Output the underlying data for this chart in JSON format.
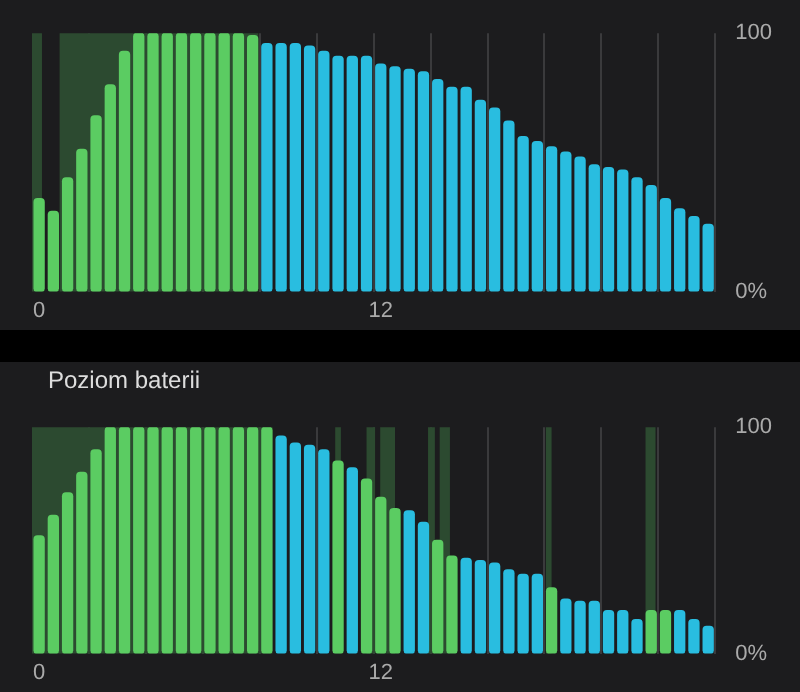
{
  "chart_data": [
    {
      "type": "bar",
      "x": [
        0,
        0.5,
        1,
        1.5,
        2,
        2.5,
        3,
        3.5,
        4,
        4.5,
        5,
        5.5,
        6,
        6.5,
        7,
        7.5,
        8,
        8.5,
        9,
        9.5,
        10,
        10.5,
        11,
        11.5,
        12,
        12.5,
        13,
        13.5,
        14,
        14.5,
        15,
        15.5,
        16,
        16.5,
        17,
        17.5,
        18,
        18.5,
        19,
        19.5,
        20,
        20.5,
        21,
        21.5,
        22,
        22.5,
        23,
        23.5
      ],
      "values": [
        36,
        31,
        44,
        55,
        68,
        80,
        93,
        100,
        100,
        100,
        100,
        100,
        100,
        100,
        100,
        99,
        96,
        96,
        96,
        95,
        93,
        91,
        91,
        91,
        88,
        87,
        86,
        85,
        82,
        79,
        79,
        74,
        71,
        66,
        60,
        58,
        56,
        54,
        52,
        49,
        48,
        47,
        44,
        41,
        36,
        32,
        29,
        26
      ],
      "colors": [
        "#5bcc62",
        "#5bcc62",
        "#5bcc62",
        "#5bcc62",
        "#5bcc62",
        "#5bcc62",
        "#5bcc62",
        "#5bcc62",
        "#5bcc62",
        "#5bcc62",
        "#5bcc62",
        "#5bcc62",
        "#5bcc62",
        "#5bcc62",
        "#5bcc62",
        "#5bcc62",
        "#29bde0",
        "#29bde0",
        "#29bde0",
        "#29bde0",
        "#29bde0",
        "#29bde0",
        "#29bde0",
        "#29bde0",
        "#29bde0",
        "#29bde0",
        "#29bde0",
        "#29bde0",
        "#29bde0",
        "#29bde0",
        "#29bde0",
        "#29bde0",
        "#29bde0",
        "#29bde0",
        "#29bde0",
        "#29bde0",
        "#29bde0",
        "#29bde0",
        "#29bde0",
        "#29bde0",
        "#29bde0",
        "#29bde0",
        "#29bde0",
        "#29bde0",
        "#29bde0",
        "#29bde0",
        "#29bde0",
        "#29bde0"
      ],
      "xlim": [
        -0.25,
        23.75
      ],
      "xticks": [
        {
          "value": 0,
          "label": "0"
        },
        {
          "value": 1.75,
          "label": null
        },
        {
          "value": 3.75,
          "label": null
        },
        {
          "value": 5.75,
          "label": null
        },
        {
          "value": 7.75,
          "label": null
        },
        {
          "value": 9.75,
          "label": null
        },
        {
          "value": 11.75,
          "label": null
        },
        {
          "value": 12,
          "label": "12"
        },
        {
          "value": 13.75,
          "label": null
        },
        {
          "value": 15.75,
          "label": null
        },
        {
          "value": 17.75,
          "label": null
        },
        {
          "value": 19.75,
          "label": null
        },
        {
          "value": 21.75,
          "label": null
        },
        {
          "value": 23.75,
          "label": null
        }
      ],
      "ylim": [
        0,
        100
      ],
      "yticks": [
        {
          "value": 0,
          "label": "0%"
        },
        100
      ],
      "bands": [
        {
          "axis": "x",
          "from": -0.25,
          "to": 0.1,
          "color": "#2c4a30"
        },
        {
          "axis": "x",
          "from": 0.72,
          "to": 7.7,
          "color": "#2c4a30"
        }
      ],
      "grid": "x",
      "legend": false
    },
    {
      "type": "bar",
      "title": "Poziom baterii",
      "x": [
        0,
        0.5,
        1,
        1.5,
        2,
        2.5,
        3,
        3.5,
        4,
        4.5,
        5,
        5.5,
        6,
        6.5,
        7,
        7.5,
        8,
        8.5,
        9,
        9.5,
        10,
        10.5,
        11,
        11.5,
        12,
        12.5,
        13,
        13.5,
        14,
        14.5,
        15,
        15.5,
        16,
        16.5,
        17,
        17.5,
        18,
        18.5,
        19,
        19.5,
        20,
        20.5,
        21,
        21.5,
        22,
        22.5,
        23,
        23.5
      ],
      "values": [
        52,
        61,
        71,
        80,
        90,
        100,
        100,
        100,
        100,
        100,
        100,
        100,
        100,
        100,
        100,
        100,
        100,
        96,
        93,
        92,
        90,
        85,
        82,
        77,
        69,
        64,
        63,
        58,
        50,
        43,
        42,
        41,
        40,
        37,
        35,
        35,
        29,
        24,
        23,
        23,
        19,
        19,
        15,
        19,
        19,
        19,
        15,
        12
      ],
      "colors": [
        "#5bcc62",
        "#5bcc62",
        "#5bcc62",
        "#5bcc62",
        "#5bcc62",
        "#5bcc62",
        "#5bcc62",
        "#5bcc62",
        "#5bcc62",
        "#5bcc62",
        "#5bcc62",
        "#5bcc62",
        "#5bcc62",
        "#5bcc62",
        "#5bcc62",
        "#5bcc62",
        "#5bcc62",
        "#29bde0",
        "#29bde0",
        "#29bde0",
        "#29bde0",
        "#5bcc62",
        "#29bde0",
        "#5bcc62",
        "#5bcc62",
        "#5bcc62",
        "#29bde0",
        "#29bde0",
        "#5bcc62",
        "#5bcc62",
        "#29bde0",
        "#29bde0",
        "#29bde0",
        "#29bde0",
        "#29bde0",
        "#29bde0",
        "#5bcc62",
        "#29bde0",
        "#29bde0",
        "#29bde0",
        "#29bde0",
        "#29bde0",
        "#29bde0",
        "#5bcc62",
        "#5bcc62",
        "#29bde0",
        "#29bde0",
        "#29bde0"
      ],
      "xlim": [
        -0.25,
        23.75
      ],
      "xticks": [
        {
          "value": 0,
          "label": "0"
        },
        {
          "value": 1.75,
          "label": null
        },
        {
          "value": 3.75,
          "label": null
        },
        {
          "value": 5.75,
          "label": null
        },
        {
          "value": 7.75,
          "label": null
        },
        {
          "value": 9.75,
          "label": null
        },
        {
          "value": 11.75,
          "label": null
        },
        {
          "value": 12,
          "label": "12"
        },
        {
          "value": 13.75,
          "label": null
        },
        {
          "value": 15.75,
          "label": null
        },
        {
          "value": 17.75,
          "label": null
        },
        {
          "value": 19.75,
          "label": null
        },
        {
          "value": 21.75,
          "label": null
        },
        {
          "value": 23.75,
          "label": null
        }
      ],
      "ylim": [
        0,
        100
      ],
      "yticks": [
        {
          "value": 0,
          "label": "0%"
        },
        100
      ],
      "bands": [
        {
          "axis": "x",
          "from": -0.25,
          "to": 8.2,
          "color": "#2c4a30"
        },
        {
          "axis": "x",
          "from": 10.4,
          "to": 10.6,
          "color": "#2c4a30"
        },
        {
          "axis": "x",
          "from": 11.5,
          "to": 11.8,
          "color": "#2c4a30"
        },
        {
          "axis": "x",
          "from": 11.98,
          "to": 12.5,
          "color": "#2c4a30"
        },
        {
          "axis": "x",
          "from": 13.66,
          "to": 13.9,
          "color": "#2c4a30"
        },
        {
          "axis": "x",
          "from": 14.07,
          "to": 14.43,
          "color": "#2c4a30"
        },
        {
          "axis": "x",
          "from": 17.8,
          "to": 18.0,
          "color": "#2c4a30"
        },
        {
          "axis": "x",
          "from": 21.3,
          "to": 21.65,
          "color": "#2c4a30"
        }
      ],
      "grid": "x",
      "legend": false
    }
  ]
}
